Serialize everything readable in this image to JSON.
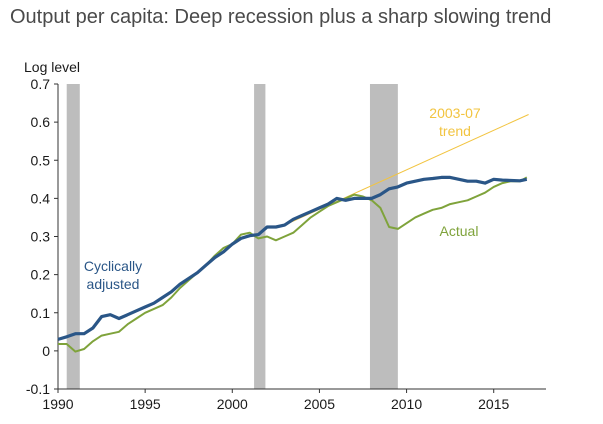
{
  "title": "Output per capita: Deep recession plus a sharp slowing trend",
  "chart_data": {
    "type": "line",
    "title": "Output per capita: Deep recession plus a sharp slowing trend",
    "ylabel": "Log level",
    "xlabel": "",
    "xlim": [
      1990,
      2018
    ],
    "ylim": [
      -0.1,
      0.7
    ],
    "x_ticks": [
      "1990",
      "1995",
      "2000",
      "2005",
      "2010",
      "2015"
    ],
    "y_ticks": [
      "-0.1",
      "0",
      "0.1",
      "0.2",
      "0.3",
      "0.4",
      "0.5",
      "0.6",
      "0.7"
    ],
    "grid": false,
    "recessions": [
      [
        1990.5,
        1991.25
      ],
      [
        2001.25,
        2001.9
      ],
      [
        2007.9,
        2009.5
      ]
    ],
    "series": [
      {
        "name": "Cyclically adjusted",
        "color": "#2a5687",
        "x": [
          1990.0,
          1990.5,
          1991.0,
          1991.5,
          1992.0,
          1992.5,
          1993.0,
          1993.5,
          1994.0,
          1994.5,
          1995.0,
          1995.5,
          1996.0,
          1996.5,
          1997.0,
          1997.5,
          1998.0,
          1998.5,
          1999.0,
          1999.5,
          2000.0,
          2000.5,
          2001.0,
          2001.5,
          2002.0,
          2002.5,
          2003.0,
          2003.5,
          2004.0,
          2004.5,
          2005.0,
          2005.5,
          2006.0,
          2006.5,
          2007.0,
          2007.5,
          2008.0,
          2008.5,
          2009.0,
          2009.5,
          2010.0,
          2010.5,
          2011.0,
          2011.5,
          2012.0,
          2012.5,
          2013.0,
          2013.5,
          2014.0,
          2014.5,
          2015.0,
          2015.5,
          2016.0,
          2016.5,
          2016.9
        ],
        "values": [
          0.03,
          0.037,
          0.045,
          0.045,
          0.06,
          0.09,
          0.095,
          0.085,
          0.095,
          0.105,
          0.115,
          0.125,
          0.14,
          0.155,
          0.175,
          0.19,
          0.205,
          0.225,
          0.245,
          0.26,
          0.28,
          0.295,
          0.302,
          0.305,
          0.325,
          0.325,
          0.33,
          0.345,
          0.355,
          0.365,
          0.375,
          0.385,
          0.4,
          0.395,
          0.4,
          0.4,
          0.4,
          0.41,
          0.425,
          0.43,
          0.44,
          0.445,
          0.45,
          0.452,
          0.455,
          0.455,
          0.45,
          0.445,
          0.445,
          0.44,
          0.45,
          0.448,
          0.447,
          0.446,
          0.45
        ]
      },
      {
        "name": "Actual",
        "color": "#7fa33b",
        "x": [
          1990.0,
          1990.5,
          1991.0,
          1991.5,
          1992.0,
          1992.5,
          1993.0,
          1993.5,
          1994.0,
          1994.5,
          1995.0,
          1995.5,
          1996.0,
          1996.5,
          1997.0,
          1997.5,
          1998.0,
          1998.5,
          1999.0,
          1999.5,
          2000.0,
          2000.5,
          2001.0,
          2001.5,
          2002.0,
          2002.5,
          2003.0,
          2003.5,
          2004.0,
          2004.5,
          2005.0,
          2005.5,
          2006.0,
          2006.5,
          2007.0,
          2007.5,
          2008.0,
          2008.5,
          2009.0,
          2009.5,
          2010.0,
          2010.5,
          2011.0,
          2011.5,
          2012.0,
          2012.5,
          2013.0,
          2013.5,
          2014.0,
          2014.5,
          2015.0,
          2015.5,
          2016.0,
          2016.5,
          2016.9
        ],
        "values": [
          0.018,
          0.018,
          -0.002,
          0.005,
          0.025,
          0.04,
          0.045,
          0.05,
          0.07,
          0.085,
          0.1,
          0.11,
          0.12,
          0.14,
          0.165,
          0.185,
          0.205,
          0.225,
          0.25,
          0.27,
          0.28,
          0.305,
          0.31,
          0.295,
          0.3,
          0.29,
          0.3,
          0.31,
          0.33,
          0.35,
          0.365,
          0.38,
          0.39,
          0.4,
          0.41,
          0.405,
          0.395,
          0.375,
          0.325,
          0.32,
          0.335,
          0.35,
          0.36,
          0.37,
          0.375,
          0.385,
          0.39,
          0.395,
          0.405,
          0.415,
          0.43,
          0.44,
          0.445,
          0.445,
          0.455
        ]
      },
      {
        "name": "2003-07 trend",
        "color": "#f2c440",
        "x": [
          2003.0,
          2017.0
        ],
        "values": [
          0.33,
          0.62
        ]
      }
    ],
    "annotations": [
      {
        "text": [
          "2003-07",
          "trend"
        ],
        "series": "2003-07 trend"
      },
      {
        "text": [
          "Actual"
        ],
        "series": "Actual"
      },
      {
        "text": [
          "Cyclically",
          "adjusted"
        ],
        "series": "Cyclically adjusted"
      }
    ]
  }
}
